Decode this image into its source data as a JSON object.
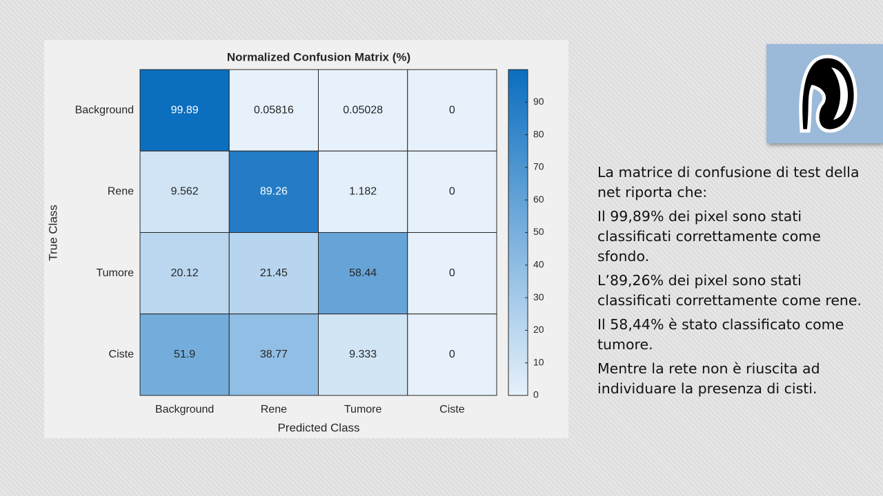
{
  "chart_data": {
    "type": "heatmap",
    "title": "Normalized Confusion Matrix (%)",
    "x_label": "Predicted Class",
    "y_label": "True Class",
    "x_categories": [
      "Background",
      "Rene",
      "Tumore",
      "Ciste"
    ],
    "y_categories": [
      "Background",
      "Rene",
      "Tumore",
      "Ciste"
    ],
    "values": [
      [
        99.89,
        0.05816,
        0.05028,
        0
      ],
      [
        9.562,
        89.26,
        1.182,
        0
      ],
      [
        20.12,
        21.45,
        58.44,
        0
      ],
      [
        51.9,
        38.77,
        9.333,
        0
      ]
    ],
    "colormap": [
      "#e6f1fb",
      "#0b6ebf"
    ],
    "clim": [
      0,
      100
    ],
    "cticks": [
      0,
      10,
      20,
      30,
      40,
      50,
      60,
      70,
      80,
      90
    ]
  },
  "slide_text": {
    "paragraphs": [
      "La matrice di confusione di test della net riporta che:",
      "Il 99,89% dei pixel sono stati classificati correttamente come sfondo.",
      "L’89,26% dei pixel sono stati classificati correttamente come rene.",
      "Il 58,44% è stato classificato come tumore.",
      "Mentre la rete non è riuscita ad individuare la presenza di cisti."
    ]
  }
}
